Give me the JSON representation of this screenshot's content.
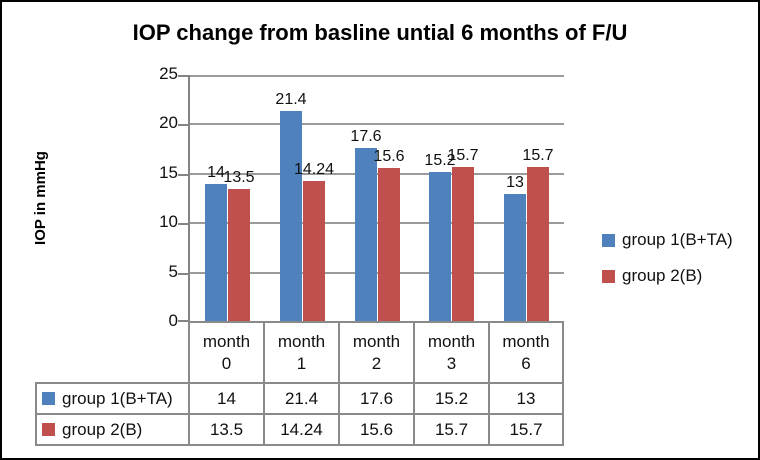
{
  "title": "IOP change from basline untial 6 months of F/U",
  "y_axis_title": "IOP in mmHg",
  "colors": {
    "series1": "#4F81BD",
    "series2": "#C0504D",
    "gridline": "#9B9B9B",
    "axis_and_table_border": "#8A8A8A",
    "text": "#111111",
    "outer_border": "#000000",
    "background": "#FFFFFF"
  },
  "chart_data": {
    "type": "bar",
    "title": "IOP change from basline untial 6 months of F/U",
    "ylabel": "IOP in mmHg",
    "xlabel": "",
    "categories": [
      "month 0",
      "month 1",
      "month 2",
      "month 3",
      "month 6"
    ],
    "series": [
      {
        "name": "group 1(B+TA)",
        "color": "#4F81BD",
        "values": [
          14,
          21.4,
          17.6,
          15.2,
          13
        ],
        "labels": [
          "14",
          "21.4",
          "17.6",
          "15.2",
          "13"
        ]
      },
      {
        "name": "group 2(B)",
        "color": "#C0504D",
        "values": [
          13.5,
          14.24,
          15.6,
          15.7,
          15.7
        ],
        "labels": [
          "13.5",
          "14.24",
          "15.6",
          "15.7",
          "15.7"
        ]
      }
    ],
    "ylim": [
      0,
      25
    ],
    "yticks": [
      0,
      5,
      10,
      15,
      20,
      25
    ],
    "grid": true,
    "legend_position": "right",
    "data_table_shown": true
  },
  "legend": {
    "items": [
      {
        "label": "group 1(B+TA)",
        "color": "#4F81BD"
      },
      {
        "label": "group 2(B)",
        "color": "#C0504D"
      }
    ]
  }
}
